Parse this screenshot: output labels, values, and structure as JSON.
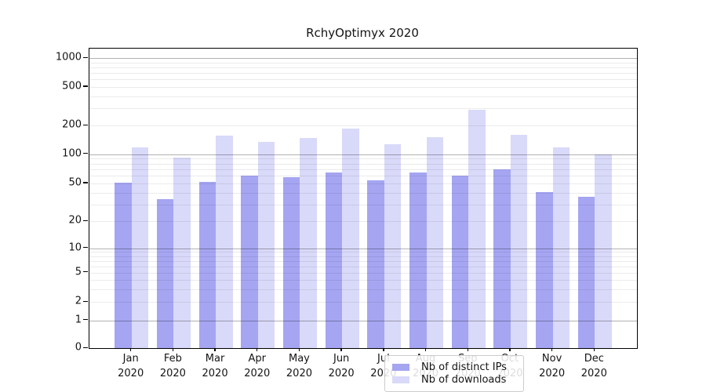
{
  "title": "RchyOptimyx 2020",
  "colors": {
    "distinct_ips_bar": "#a5a5f2",
    "downloads_bar": "#d9d9f9",
    "axis_text": "#141414",
    "grid_major": "rgba(0,0,0,0.30)",
    "grid_minor": "rgba(0,0,0,0.08)"
  },
  "legend": {
    "items": [
      {
        "label": "Nb of distinct IPs",
        "color": "#a5a5f2"
      },
      {
        "label": "Nb of downloads",
        "color": "#d9d9f9"
      }
    ]
  },
  "chart_data": {
    "type": "bar",
    "title": "RchyOptimyx 2020",
    "categories": [
      "Jan 2020",
      "Feb 2020",
      "Mar 2020",
      "Apr 2020",
      "May 2020",
      "Jun 2020",
      "Jul 2020",
      "Aug 2020",
      "Sep 2020",
      "Oct 2020",
      "Nov 2020",
      "Dec 2020"
    ],
    "x_months": [
      "Jan",
      "Feb",
      "Mar",
      "Apr",
      "May",
      "Jun",
      "Jul",
      "Aug",
      "Sep",
      "Oct",
      "Nov",
      "Dec"
    ],
    "x_year": "2020",
    "series": [
      {
        "name": "Nb of distinct IPs",
        "values": [
          51,
          34,
          52,
          60,
          58,
          65,
          54,
          65,
          60,
          69,
          40,
          36
        ]
      },
      {
        "name": "Nb of downloads",
        "values": [
          118,
          91,
          155,
          135,
          148,
          185,
          127,
          151,
          290,
          159,
          118,
          99
        ]
      }
    ],
    "xlabel": "",
    "ylabel": "",
    "yscale": "symlog (linear 0-1, logarithmic above 1)",
    "y_ticks": [
      0,
      1,
      2,
      5,
      10,
      20,
      50,
      100,
      200,
      500,
      1000
    ],
    "ylim": [
      0,
      1250
    ],
    "grid": "major and minor horizontal gridlines drawn over bars",
    "legend_position": "lower center"
  }
}
